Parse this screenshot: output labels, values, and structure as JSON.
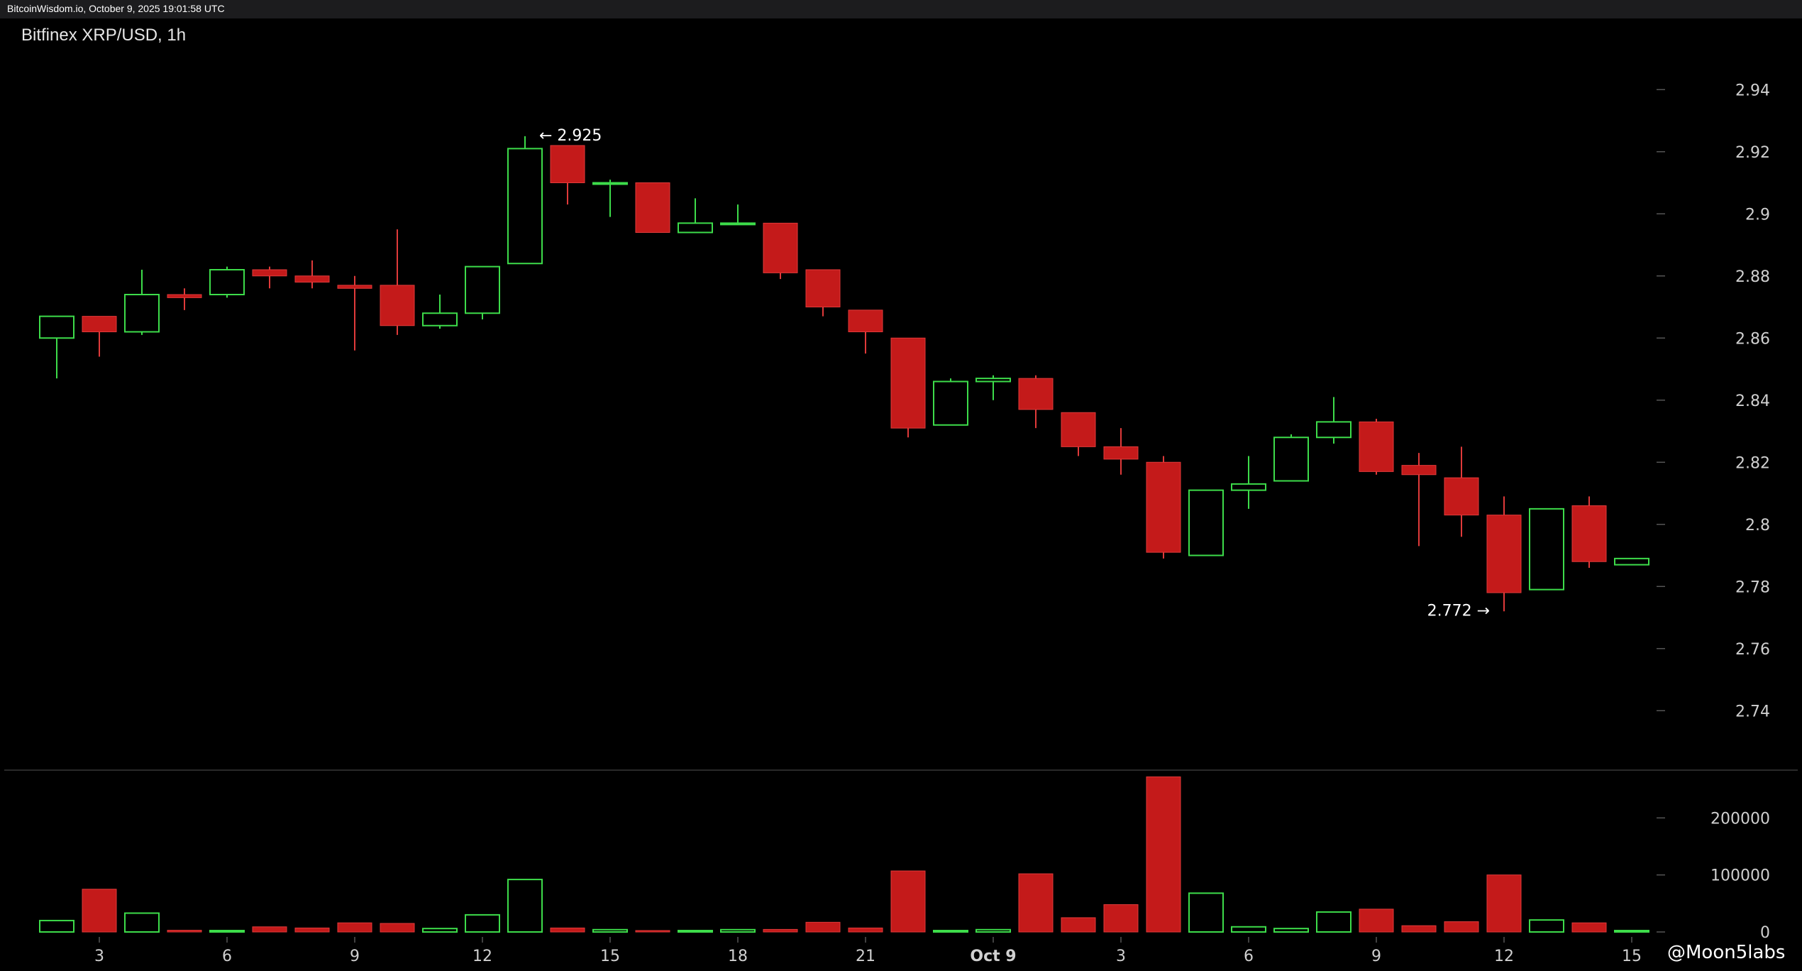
{
  "header": {
    "text": "BitcoinWisdom.io, October 9, 2025 19:01:58 UTC"
  },
  "chart_title": "Bitfinex XRP/USD, 1h",
  "watermark": "@Moon5labs",
  "colors": {
    "up": "#3ddc4a",
    "down": "#c41a1a",
    "down_border": "#e03a3a",
    "grid": "#222222",
    "axis_text": "#d0d0d0",
    "background": "#000000"
  },
  "chart_data": {
    "type": "candlestick",
    "title": "Bitfinex XRP/USD, 1h",
    "price_axis": {
      "ticks": [
        2.74,
        2.76,
        2.78,
        2.8,
        2.82,
        2.84,
        2.86,
        2.88,
        2.9,
        2.92,
        2.94
      ],
      "tick_labels": [
        "2.74",
        "2.76",
        "2.78",
        "2.8",
        "2.82",
        "2.84",
        "2.86",
        "2.88",
        "2.9",
        "2.92",
        "2.94"
      ],
      "range": [
        2.722,
        2.962
      ]
    },
    "volume_axis": {
      "ticks": [
        0,
        100000,
        200000
      ],
      "tick_labels": [
        "0",
        "100000",
        "200000"
      ],
      "range": [
        0,
        290000
      ]
    },
    "x_labels": [
      {
        "index": 1,
        "label": "3"
      },
      {
        "index": 4,
        "label": "6"
      },
      {
        "index": 7,
        "label": "9"
      },
      {
        "index": 10,
        "label": "12"
      },
      {
        "index": 13,
        "label": "15"
      },
      {
        "index": 16,
        "label": "18"
      },
      {
        "index": 19,
        "label": "21"
      },
      {
        "index": 22,
        "label": "Oct 9"
      },
      {
        "index": 25,
        "label": "3"
      },
      {
        "index": 28,
        "label": "6"
      },
      {
        "index": 31,
        "label": "9"
      },
      {
        "index": 34,
        "label": "12"
      },
      {
        "index": 37,
        "label": "15"
      }
    ],
    "candles": [
      {
        "o": 2.86,
        "h": 2.867,
        "l": 2.847,
        "c": 2.867,
        "v": 20000
      },
      {
        "o": 2.867,
        "h": 2.867,
        "l": 2.854,
        "c": 2.862,
        "v": 75000
      },
      {
        "o": 2.862,
        "h": 2.882,
        "l": 2.861,
        "c": 2.874,
        "v": 33000
      },
      {
        "o": 2.874,
        "h": 2.876,
        "l": 2.869,
        "c": 2.873,
        "v": 3000
      },
      {
        "o": 2.874,
        "h": 2.883,
        "l": 2.873,
        "c": 2.882,
        "v": 2500
      },
      {
        "o": 2.882,
        "h": 2.883,
        "l": 2.876,
        "c": 2.88,
        "v": 9000
      },
      {
        "o": 2.88,
        "h": 2.885,
        "l": 2.876,
        "c": 2.878,
        "v": 7000
      },
      {
        "o": 2.877,
        "h": 2.88,
        "l": 2.856,
        "c": 2.876,
        "v": 16000
      },
      {
        "o": 2.877,
        "h": 2.895,
        "l": 2.861,
        "c": 2.864,
        "v": 15000
      },
      {
        "o": 2.864,
        "h": 2.874,
        "l": 2.863,
        "c": 2.868,
        "v": 6000
      },
      {
        "o": 2.868,
        "h": 2.883,
        "l": 2.866,
        "c": 2.883,
        "v": 30000
      },
      {
        "o": 2.884,
        "h": 2.925,
        "l": 2.884,
        "c": 2.921,
        "v": 92000
      },
      {
        "o": 2.922,
        "h": 2.922,
        "l": 2.903,
        "c": 2.91,
        "v": 7000
      },
      {
        "o": 2.91,
        "h": 2.911,
        "l": 2.899,
        "c": 2.91,
        "v": 4000
      },
      {
        "o": 2.91,
        "h": 2.91,
        "l": 2.894,
        "c": 2.894,
        "v": 2500
      },
      {
        "o": 2.894,
        "h": 2.905,
        "l": 2.894,
        "c": 2.897,
        "v": 1500
      },
      {
        "o": 2.897,
        "h": 2.903,
        "l": 2.897,
        "c": 2.897,
        "v": 4000
      },
      {
        "o": 2.897,
        "h": 2.897,
        "l": 2.879,
        "c": 2.881,
        "v": 4500
      },
      {
        "o": 2.882,
        "h": 2.882,
        "l": 2.867,
        "c": 2.87,
        "v": 17000
      },
      {
        "o": 2.869,
        "h": 2.869,
        "l": 2.855,
        "c": 2.862,
        "v": 7000
      },
      {
        "o": 2.86,
        "h": 2.86,
        "l": 2.828,
        "c": 2.831,
        "v": 107000
      },
      {
        "o": 2.832,
        "h": 2.847,
        "l": 2.832,
        "c": 2.846,
        "v": 2000
      },
      {
        "o": 2.846,
        "h": 2.848,
        "l": 2.84,
        "c": 2.847,
        "v": 4000
      },
      {
        "o": 2.847,
        "h": 2.848,
        "l": 2.831,
        "c": 2.837,
        "v": 102000
      },
      {
        "o": 2.836,
        "h": 2.836,
        "l": 2.822,
        "c": 2.825,
        "v": 25000
      },
      {
        "o": 2.825,
        "h": 2.831,
        "l": 2.816,
        "c": 2.821,
        "v": 48000
      },
      {
        "o": 2.82,
        "h": 2.822,
        "l": 2.789,
        "c": 2.791,
        "v": 272000
      },
      {
        "o": 2.79,
        "h": 2.811,
        "l": 2.79,
        "c": 2.811,
        "v": 68000
      },
      {
        "o": 2.811,
        "h": 2.822,
        "l": 2.805,
        "c": 2.813,
        "v": 9000
      },
      {
        "o": 2.814,
        "h": 2.829,
        "l": 2.814,
        "c": 2.828,
        "v": 6000
      },
      {
        "o": 2.828,
        "h": 2.841,
        "l": 2.826,
        "c": 2.833,
        "v": 35000
      },
      {
        "o": 2.833,
        "h": 2.834,
        "l": 2.816,
        "c": 2.817,
        "v": 40000
      },
      {
        "o": 2.819,
        "h": 2.823,
        "l": 2.793,
        "c": 2.816,
        "v": 11000
      },
      {
        "o": 2.815,
        "h": 2.825,
        "l": 2.796,
        "c": 2.803,
        "v": 18000
      },
      {
        "o": 2.803,
        "h": 2.809,
        "l": 2.772,
        "c": 2.778,
        "v": 100000
      },
      {
        "o": 2.779,
        "h": 2.805,
        "l": 2.779,
        "c": 2.805,
        "v": 21000
      },
      {
        "o": 2.806,
        "h": 2.809,
        "l": 2.786,
        "c": 2.788,
        "v": 16000
      },
      {
        "o": 2.787,
        "h": 2.789,
        "l": 2.787,
        "c": 2.789,
        "v": 500
      }
    ],
    "annotations": [
      {
        "index": 11,
        "price": 2.925,
        "text": "← 2.925",
        "side": "right"
      },
      {
        "index": 34,
        "price": 2.772,
        "text": "2.772 →",
        "side": "left"
      }
    ]
  }
}
